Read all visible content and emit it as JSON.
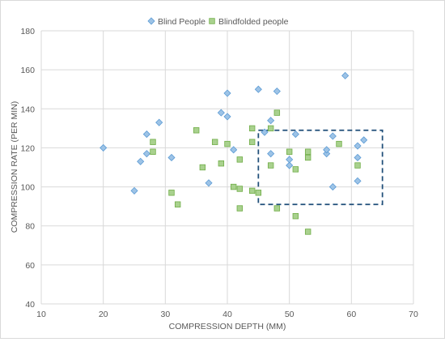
{
  "chart_data": {
    "type": "scatter",
    "title": "",
    "xlabel": "COMPRESSION DEPTH (MM)",
    "ylabel": "COMPRESSION RATE (PER MIN)",
    "xlim": [
      10,
      70
    ],
    "ylim": [
      40,
      180
    ],
    "xticks": [
      10,
      20,
      30,
      40,
      50,
      60,
      70
    ],
    "yticks": [
      40,
      60,
      80,
      100,
      120,
      140,
      160,
      180
    ],
    "grid": "horizontal and vertical",
    "legend_position": "top",
    "series": [
      {
        "name": "Blind People",
        "marker": "diamond",
        "color": "#9DC3E6",
        "stroke": "#5B9BD5",
        "points": [
          [
            20,
            120
          ],
          [
            25,
            98
          ],
          [
            26,
            113
          ],
          [
            27,
            117
          ],
          [
            27,
            127
          ],
          [
            29,
            133
          ],
          [
            31,
            115
          ],
          [
            37,
            102
          ],
          [
            39,
            138
          ],
          [
            40,
            148
          ],
          [
            40,
            136
          ],
          [
            41,
            119
          ],
          [
            45,
            150
          ],
          [
            46,
            128
          ],
          [
            47,
            134
          ],
          [
            47,
            117
          ],
          [
            48,
            149
          ],
          [
            50,
            111
          ],
          [
            50,
            114
          ],
          [
            51,
            127
          ],
          [
            56,
            117
          ],
          [
            56,
            119
          ],
          [
            57,
            126
          ],
          [
            57,
            100
          ],
          [
            59,
            157
          ],
          [
            61,
            121
          ],
          [
            61,
            115
          ],
          [
            61,
            103
          ],
          [
            62,
            124
          ]
        ]
      },
      {
        "name": "Blindfolded people",
        "marker": "square",
        "color": "#A9D18E",
        "stroke": "#70AD47",
        "points": [
          [
            28,
            118
          ],
          [
            28,
            123
          ],
          [
            31,
            97
          ],
          [
            32,
            91
          ],
          [
            35,
            129
          ],
          [
            36,
            110
          ],
          [
            38,
            123
          ],
          [
            39,
            112
          ],
          [
            40,
            122
          ],
          [
            41,
            100
          ],
          [
            42,
            99
          ],
          [
            42,
            89
          ],
          [
            42,
            114
          ],
          [
            44,
            98
          ],
          [
            44,
            123
          ],
          [
            44,
            130
          ],
          [
            45,
            97
          ],
          [
            47,
            111
          ],
          [
            47,
            130
          ],
          [
            48,
            138
          ],
          [
            48,
            89
          ],
          [
            50,
            118
          ],
          [
            51,
            109
          ],
          [
            51,
            85
          ],
          [
            53,
            118
          ],
          [
            53,
            115
          ],
          [
            53,
            77
          ],
          [
            58,
            122
          ],
          [
            61,
            111
          ]
        ]
      }
    ],
    "highlight_box": {
      "style": "dashed",
      "color": "#1F4E79",
      "x_range": [
        45,
        65
      ],
      "y_range": [
        91,
        129
      ]
    }
  }
}
